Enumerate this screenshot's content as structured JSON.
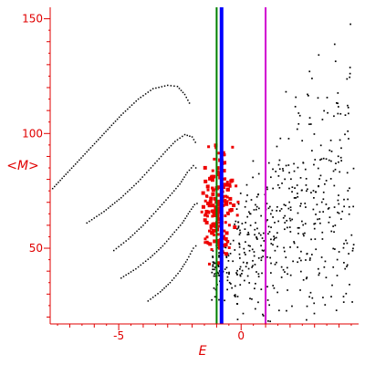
{
  "chart_data": {
    "type": "scatter",
    "title": "",
    "xlabel": "E",
    "ylabel": "<M>",
    "xlim": [
      -7.8,
      4.8
    ],
    "ylim": [
      17,
      155
    ],
    "xticks": [
      {
        "value": -5,
        "label": "-5"
      },
      {
        "value": 0,
        "label": "0"
      }
    ],
    "yticks": [
      {
        "value": 50,
        "label": "50"
      },
      {
        "value": 100,
        "label": "100"
      },
      {
        "value": 150,
        "label": "150"
      }
    ],
    "grid": false,
    "colors": {
      "axis": "#e00000",
      "black_series": "#000000",
      "red_series": "#ee0000",
      "green_line": "#008000",
      "blue_line": "#0000ff",
      "magenta_line": "#d000d0"
    },
    "vertical_lines": [
      {
        "x": -1.0,
        "color": "#008000",
        "width": 2
      },
      {
        "x": -0.8,
        "color": "#0000ff",
        "width": 4
      },
      {
        "x": 1.0,
        "color": "#d000d0",
        "width": 2
      }
    ],
    "series": [
      {
        "kind": "curve",
        "color": "#000000",
        "points": [
          [
            -7.7,
            76
          ],
          [
            -7.0,
            84
          ],
          [
            -6.3,
            92
          ],
          [
            -5.6,
            100
          ],
          [
            -4.9,
            108
          ],
          [
            -4.2,
            115
          ],
          [
            -3.6,
            119.5
          ],
          [
            -3.0,
            121
          ],
          [
            -2.6,
            120.5
          ],
          [
            -2.3,
            117
          ],
          [
            -2.05,
            112
          ]
        ]
      },
      {
        "kind": "curve",
        "color": "#000000",
        "points": [
          [
            -6.3,
            61
          ],
          [
            -5.6,
            66
          ],
          [
            -4.9,
            72
          ],
          [
            -4.2,
            79
          ],
          [
            -3.6,
            86
          ],
          [
            -3.1,
            92
          ],
          [
            -2.7,
            96.5
          ],
          [
            -2.3,
            99.5
          ],
          [
            -2.0,
            98.5
          ],
          [
            -1.8,
            95
          ]
        ]
      },
      {
        "kind": "curve",
        "color": "#000000",
        "points": [
          [
            -5.2,
            49
          ],
          [
            -4.6,
            54
          ],
          [
            -4.0,
            60
          ],
          [
            -3.4,
            67
          ],
          [
            -2.9,
            73
          ],
          [
            -2.5,
            78
          ],
          [
            -2.2,
            83
          ],
          [
            -1.95,
            86
          ],
          [
            -1.75,
            84
          ]
        ]
      },
      {
        "kind": "curve",
        "color": "#000000",
        "points": [
          [
            -4.9,
            37
          ],
          [
            -4.3,
            41
          ],
          [
            -3.7,
            46
          ],
          [
            -3.2,
            51
          ],
          [
            -2.8,
            56
          ],
          [
            -2.4,
            61
          ],
          [
            -2.1,
            66
          ],
          [
            -1.9,
            69
          ],
          [
            -1.7,
            70
          ]
        ]
      },
      {
        "kind": "curve",
        "color": "#000000",
        "points": [
          [
            -3.8,
            27
          ],
          [
            -3.3,
            31
          ],
          [
            -2.9,
            35
          ],
          [
            -2.5,
            40
          ],
          [
            -2.2,
            45
          ],
          [
            -1.95,
            50
          ],
          [
            -1.75,
            52
          ]
        ]
      },
      {
        "kind": "cloud",
        "color": "#000000",
        "count": 560,
        "seed": 7,
        "center": [
          2.6,
          78
        ],
        "spread": [
          1.6,
          22
        ]
      },
      {
        "kind": "cloud",
        "color": "#ee0000",
        "count": 180,
        "seed": 23,
        "center": [
          -0.9,
          68
        ],
        "spread": [
          0.45,
          15
        ]
      }
    ]
  }
}
